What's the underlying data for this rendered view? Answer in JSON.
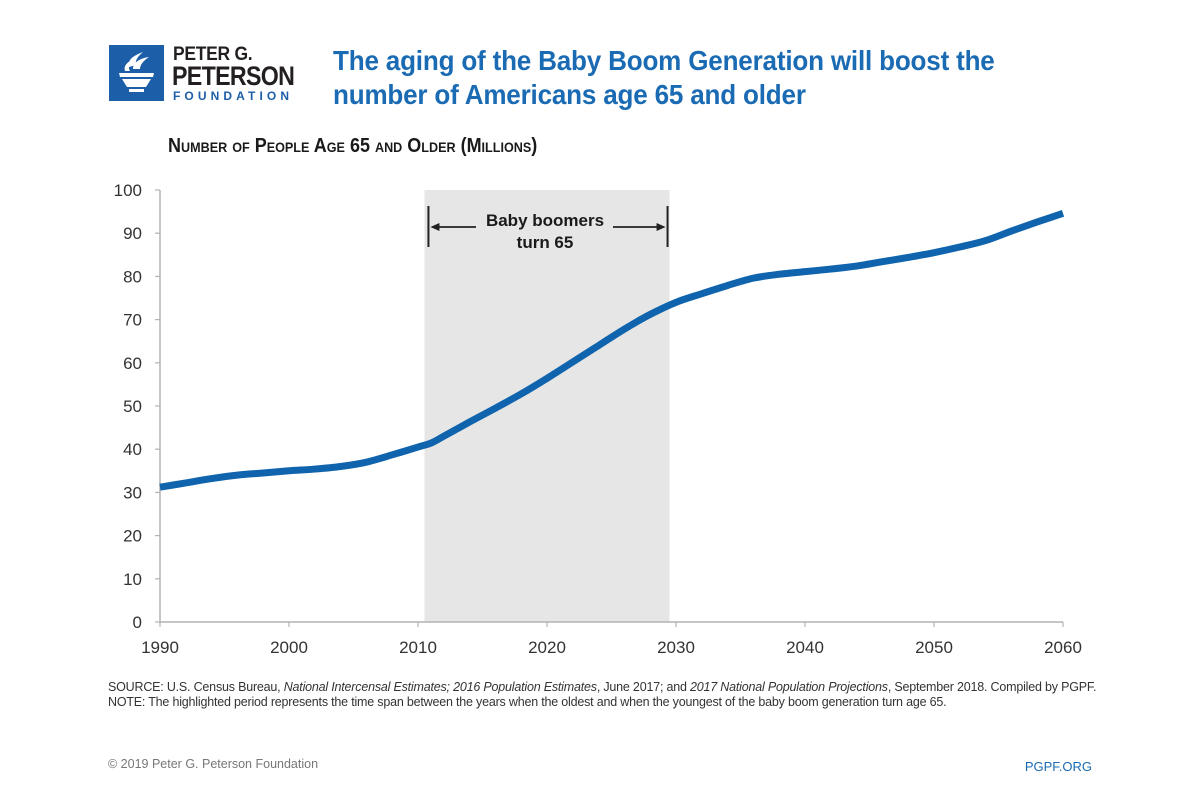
{
  "logo": {
    "line1": "PETER G.",
    "line2": "PETERSON",
    "line3": "FOUNDATION",
    "icon": "torch-icon",
    "brand_color": "#1d5ea8"
  },
  "header": {
    "title": "The aging of the Baby Boom Generation will boost the number of Americans age 65 and older",
    "title_color": "#1a6bb3"
  },
  "chart_data": {
    "type": "line",
    "title": "Number of People Age 65 and Older (Millions)",
    "xlabel": "",
    "ylabel": "",
    "xlim": [
      1990,
      2060
    ],
    "ylim": [
      0,
      100
    ],
    "x_ticks": [
      1990,
      2000,
      2010,
      2020,
      2030,
      2040,
      2050,
      2060
    ],
    "y_ticks": [
      0,
      10,
      20,
      30,
      40,
      50,
      60,
      70,
      80,
      90,
      100
    ],
    "grid": false,
    "series": [
      {
        "name": "Population age 65+ (millions)",
        "color": "#0f64ad",
        "x": [
          1990,
          1992,
          1994,
          1996,
          1998,
          2000,
          2002,
          2004,
          2006,
          2008,
          2010,
          2011,
          2012,
          2014,
          2016,
          2018,
          2020,
          2022,
          2024,
          2026,
          2028,
          2030,
          2032,
          2034,
          2036,
          2038,
          2040,
          2042,
          2044,
          2046,
          2048,
          2050,
          2052,
          2054,
          2056,
          2058,
          2060
        ],
        "values": [
          31.2,
          32.2,
          33.2,
          34.0,
          34.5,
          35.0,
          35.4,
          36.0,
          37.0,
          38.7,
          40.5,
          41.4,
          43.0,
          46.3,
          49.5,
          52.8,
          56.4,
          60.2,
          64.0,
          67.8,
          71.2,
          74.0,
          76.0,
          77.9,
          79.6,
          80.5,
          81.1,
          81.7,
          82.4,
          83.4,
          84.4,
          85.5,
          86.8,
          88.3,
          90.5,
          92.6,
          94.6
        ]
      }
    ],
    "highlight": {
      "x_start": 2010.5,
      "x_end": 2029.5,
      "color": "#e6e6e6",
      "label_line1": "Baby boomers",
      "label_line2": "turn 65"
    }
  },
  "footer": {
    "source_prefix": "SOURCE: U.S. Census Bureau, ",
    "source_italic1": "National Intercensal Estimates; 2016 Population Estimates",
    "source_mid": ", June 2017; and ",
    "source_italic2": "2017 National Population Projections",
    "source_suffix": ", September 2018. Compiled by PGPF.",
    "note": "NOTE: The highlighted period represents the time span between the years when the oldest and when the youngest of the baby boom generation turn age 65.",
    "copyright": "© 2019 Peter G. Peterson Foundation",
    "site": "PGPF.ORG"
  }
}
